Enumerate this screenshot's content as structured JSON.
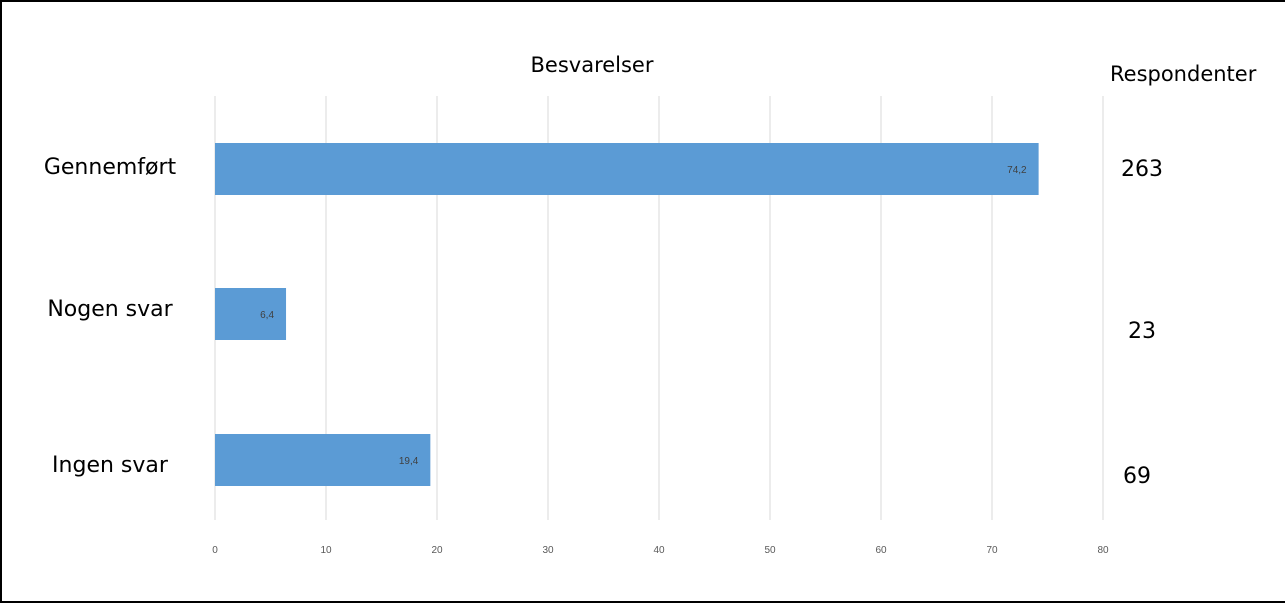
{
  "chart_data": {
    "type": "bar",
    "orientation": "horizontal",
    "title": "Besvarelser",
    "categories": [
      "Gennemført",
      "Nogen svar",
      "Ingen svar"
    ],
    "values": [
      74.2,
      6.4,
      19.4
    ],
    "value_labels": [
      "74,2",
      "6,4",
      "19,4"
    ],
    "xlim": [
      0,
      80
    ],
    "x_ticks": [
      0,
      10,
      20,
      30,
      40,
      50,
      60,
      70,
      80
    ],
    "grid": "vertical",
    "bar_color": "#5b9bd5",
    "side_column": {
      "header": "Respondenter",
      "values": [
        "263",
        "23",
        "69"
      ]
    }
  }
}
